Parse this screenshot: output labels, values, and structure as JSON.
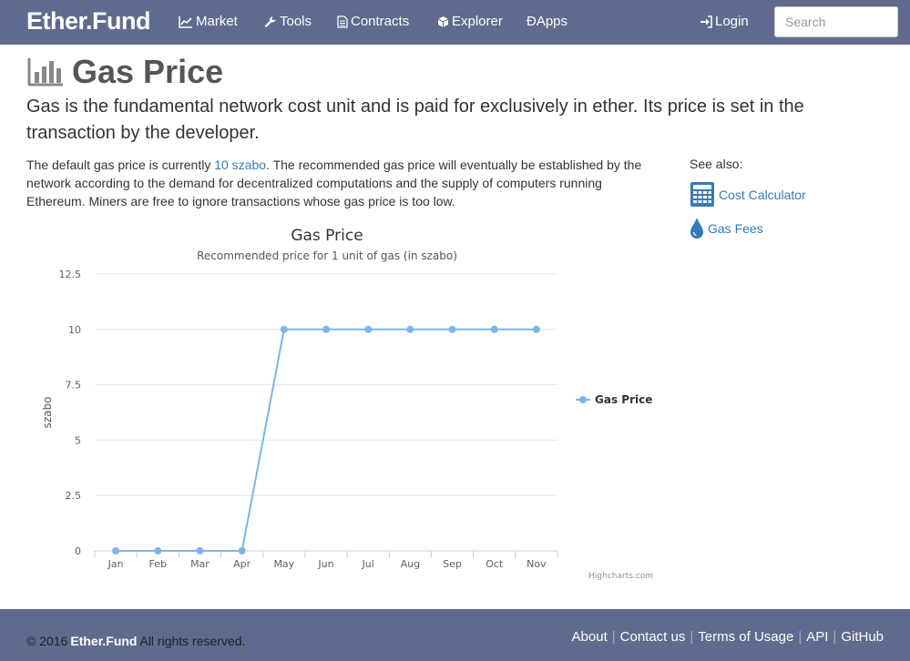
{
  "nav": {
    "brand": "Ether.Fund",
    "items": [
      {
        "label": "Market",
        "icon": "line-chart-icon"
      },
      {
        "label": "Tools",
        "icon": "wrench-icon"
      },
      {
        "label": "Contracts",
        "icon": "document-icon"
      },
      {
        "label": "Explorer",
        "icon": "cube-icon"
      },
      {
        "label": "ĐApps",
        "icon": ""
      }
    ],
    "login": "Login",
    "search_placeholder": "Search"
  },
  "page": {
    "title": "Gas Price",
    "lead": "Gas is the fundamental network cost unit and is paid for exclusively in ether. Its price is set in the transaction by the developer.",
    "body_before": "The default gas price is currently ",
    "body_link": "10 szabo",
    "body_after": ". The recommended gas price will eventually be established by the network according to the demand for decentralized computations and the supply of computers running Ethereum. Miners are free to ignore transactions whose gas price is too low."
  },
  "sidebar": {
    "heading": "See also:",
    "links": [
      {
        "label": "Cost Calculator",
        "icon": "calculator-icon"
      },
      {
        "label": "Gas Fees",
        "icon": "drop-icon"
      }
    ]
  },
  "chart_data": {
    "type": "line",
    "title": "Gas Price",
    "subtitle": "Recommended price for 1 unit of gas (in szabo)",
    "ylabel": "szabo",
    "xlabel": "",
    "categories": [
      "Jan",
      "Feb",
      "Mar",
      "Apr",
      "May",
      "Jun",
      "Jul",
      "Aug",
      "Sep",
      "Oct",
      "Nov"
    ],
    "series": [
      {
        "name": "Gas Price",
        "values": [
          0,
          0,
          0,
          0,
          10,
          10,
          10,
          10,
          10,
          10,
          10
        ],
        "color": "#7cb5ec"
      }
    ],
    "ylim": [
      0,
      12.5
    ],
    "yticks": [
      "0",
      "2.5",
      "5",
      "7.5",
      "10",
      "12.5"
    ],
    "grid": true,
    "legend": "right",
    "credits": "Highcharts.com"
  },
  "footer": {
    "copyright_prefix": "© 2016",
    "copyright_brand": "Ether.Fund",
    "copyright_suffix": "All rights reserved.",
    "links": [
      "About",
      "Contact us",
      "Terms of Usage",
      "API",
      "GitHub"
    ]
  }
}
